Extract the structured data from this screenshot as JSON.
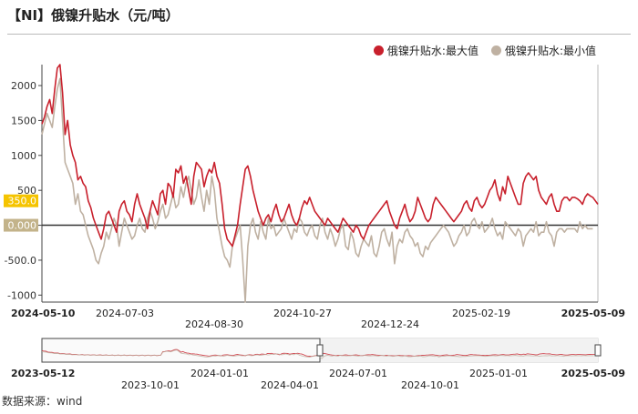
{
  "title": "【NI】俄镍升贴水（元/吨）",
  "source": "数据来源：wind",
  "colors": {
    "max": "#c8202c",
    "min": "#bfb1a2",
    "zero_line": "#333333",
    "tag1": "#f5c400",
    "tag2": "#c3b38a"
  },
  "chart_data": {
    "type": "line",
    "title": "【NI】俄镍升贴水（元/吨）",
    "xlabel": "",
    "ylabel": "",
    "ylim": [
      -1100,
      2300
    ],
    "yticks": [
      "2000",
      "1500",
      "1000",
      "500",
      "0",
      "-500.0",
      "-1000"
    ],
    "xticks": [
      "2024-05-10",
      "2024-07-03",
      "2024-08-30",
      "2024-10-27",
      "2024-12-24",
      "2025-02-19",
      "2025-05-09"
    ],
    "x_range": [
      "2024-05-10",
      "2025-05-09"
    ],
    "y_tags": [
      "350.0",
      "0.000"
    ],
    "legend_position": "top-right",
    "grid": false,
    "series": [
      {
        "name": "俄镍升贴水:最大值",
        "values": [
          1450,
          1550,
          1700,
          1800,
          1600,
          1950,
          2250,
          2300,
          1900,
          1300,
          1500,
          1150,
          1000,
          900,
          650,
          700,
          600,
          550,
          350,
          250,
          100,
          0,
          -100,
          -200,
          -50,
          150,
          200,
          100,
          0,
          -100,
          200,
          300,
          350,
          200,
          150,
          50,
          300,
          450,
          300,
          200,
          100,
          -50,
          200,
          350,
          250,
          150,
          450,
          500,
          300,
          600,
          550,
          400,
          800,
          750,
          850,
          600,
          700,
          500,
          300,
          700,
          900,
          850,
          800,
          550,
          700,
          800,
          750,
          900,
          700,
          600,
          300,
          -50,
          -200,
          -250,
          -300,
          -150,
          0,
          300,
          550,
          800,
          850,
          700,
          500,
          350,
          200,
          100,
          0,
          100,
          150,
          50,
          200,
          300,
          150,
          50,
          100,
          200,
          300,
          150,
          50,
          0,
          100,
          250,
          350,
          300,
          400,
          300,
          200,
          150,
          100,
          50,
          0,
          100,
          50,
          0,
          -50,
          -100,
          0,
          100,
          50,
          0,
          -50,
          -100,
          0,
          -50,
          -150,
          -200,
          -100,
          0,
          50,
          100,
          150,
          200,
          250,
          300,
          350,
          200,
          100,
          0,
          -50,
          100,
          200,
          300,
          150,
          50,
          100,
          200,
          400,
          300,
          200,
          100,
          50,
          100,
          300,
          400,
          350,
          300,
          250,
          200,
          150,
          100,
          50,
          100,
          150,
          200,
          300,
          350,
          250,
          200,
          350,
          400,
          300,
          250,
          300,
          400,
          500,
          550,
          650,
          450,
          350,
          550,
          450,
          700,
          600,
          500,
          400,
          300,
          300,
          600,
          700,
          750,
          700,
          650,
          700,
          500,
          400,
          350,
          300,
          400,
          450,
          300,
          200,
          200,
          350,
          400,
          400,
          350,
          400,
          400,
          380,
          350,
          300,
          400,
          450,
          420,
          400,
          350,
          300
        ]
      },
      {
        "name": "俄镍升贴水:最小值",
        "values": [
          1300,
          1450,
          1600,
          1500,
          1400,
          1700,
          1950,
          2100,
          1500,
          900,
          800,
          700,
          600,
          300,
          450,
          200,
          150,
          0,
          -150,
          -250,
          -350,
          -500,
          -550,
          -400,
          -300,
          -100,
          -200,
          -50,
          100,
          0,
          -300,
          -100,
          100,
          0,
          -100,
          -200,
          -150,
          0,
          100,
          -50,
          -100,
          100,
          200,
          100,
          -50,
          50,
          200,
          300,
          100,
          150,
          300,
          450,
          250,
          300,
          550,
          400,
          600,
          700,
          500,
          300,
          400,
          650,
          400,
          200,
          500,
          300,
          700,
          500,
          100,
          -100,
          -300,
          -450,
          -500,
          -600,
          -300,
          -200,
          -100,
          0,
          -500,
          -1100,
          -300,
          0,
          100,
          -100,
          -200,
          50,
          -100,
          -200,
          100,
          -50,
          0,
          -150,
          -100,
          -50,
          100,
          0,
          -100,
          -200,
          -50,
          -100,
          100,
          50,
          -100,
          -150,
          -50,
          0,
          -150,
          -200,
          0,
          100,
          -100,
          -200,
          -50,
          -150,
          -300,
          -200,
          -50,
          0,
          -300,
          -350,
          -100,
          -200,
          -400,
          -450,
          -300,
          -200,
          -250,
          -300,
          -150,
          -400,
          -450,
          -300,
          -100,
          -50,
          -200,
          -300,
          -100,
          -550,
          -300,
          -200,
          -250,
          -100,
          -50,
          -150,
          -200,
          -300,
          -250,
          -400,
          -450,
          -300,
          -350,
          -250,
          -200,
          -150,
          -100,
          -50,
          0,
          -50,
          -100,
          -200,
          -300,
          -250,
          -150,
          -100,
          0,
          -150,
          -100,
          50,
          100,
          0,
          -50,
          50,
          -100,
          -50,
          0,
          100,
          -50,
          -150,
          -100,
          -200,
          50,
          0,
          -50,
          -100,
          -150,
          -50,
          -100,
          -300,
          -150,
          -100,
          -50,
          -100,
          50,
          -150,
          -100,
          -100,
          50,
          -100,
          -150,
          -300,
          -100,
          -50,
          -50,
          -100,
          -50,
          -50,
          -50,
          -50,
          -100,
          50,
          -50,
          0,
          -50,
          -50,
          -50
        ]
      }
    ]
  },
  "navigator": {
    "start_label": "2023-05-12",
    "end_label": "2025-05-09",
    "labels": [
      "2023-10-01",
      "2024-01-01",
      "2024-04-01",
      "2024-07-01",
      "2024-10-01",
      "2025-01-01"
    ],
    "top_labels": [
      "2024-01-01",
      "2024-07-01",
      "2025-01-01"
    ],
    "bottom_labels": [
      "2023-10-01",
      "2024-04-01",
      "2024-10-01"
    ]
  }
}
